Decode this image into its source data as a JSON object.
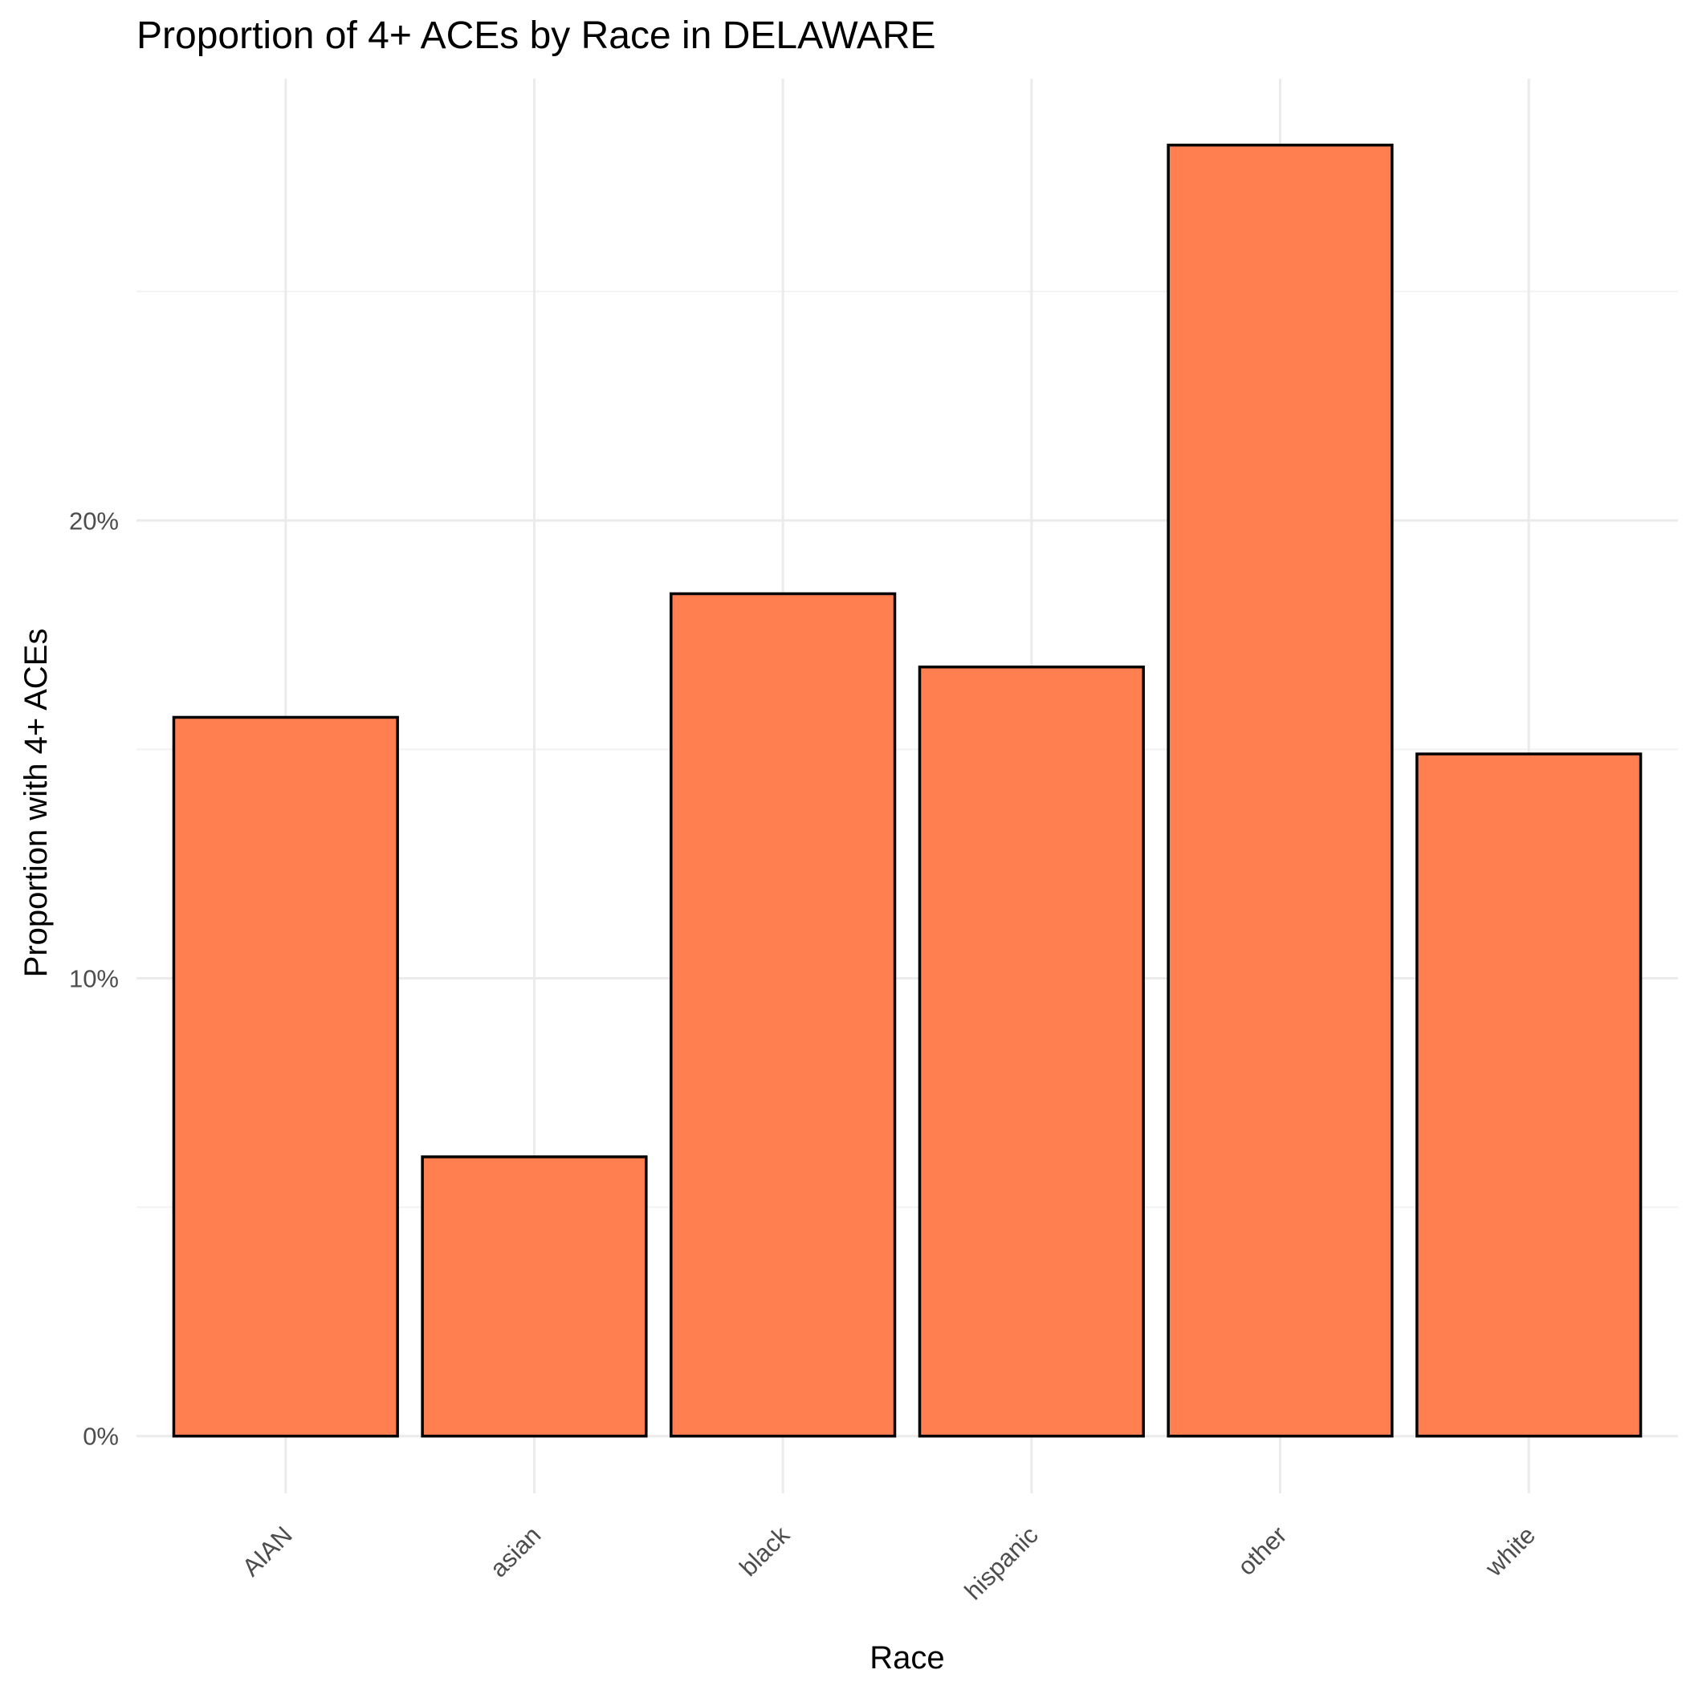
{
  "chart_data": {
    "type": "bar",
    "title": "Proportion of 4+ ACEs by Race in DELAWARE",
    "xlabel": "Race",
    "ylabel": "Proportion with 4+ ACEs",
    "categories": [
      "AIAN",
      "asian",
      "black",
      "hispanic",
      "other",
      "white"
    ],
    "values": [
      0.157,
      0.061,
      0.184,
      0.168,
      0.282,
      0.149
    ],
    "y_ticks": [
      0,
      0.1,
      0.2
    ],
    "y_tick_labels": [
      "0%",
      "10%",
      "20%"
    ],
    "y_minor_ticks": [
      0.05,
      0.15,
      0.25
    ],
    "ylim": [
      -0.0125,
      0.2965
    ],
    "grid": true,
    "legend": "none",
    "bar_fill_color": "#FF7F50",
    "bar_border_color": "#000000",
    "grid_color": "#EBEBEB"
  }
}
